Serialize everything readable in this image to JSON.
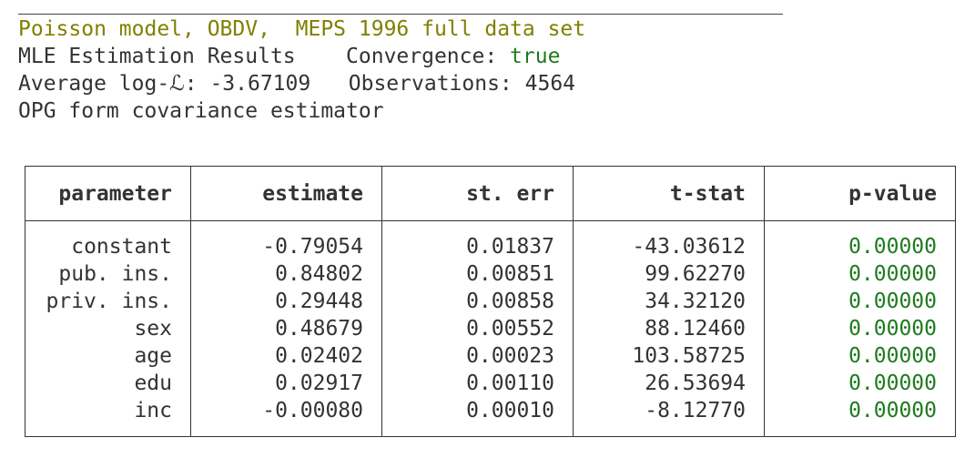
{
  "header": {
    "title": "Poisson model, OBDV,  MEPS 1996 full data set",
    "estimation_label": "MLE Estimation Results",
    "convergence_label": "Convergence: ",
    "convergence_value": "true",
    "avg_loglik_label": "Average log-ℒ: ",
    "avg_loglik_value": "-3.67109",
    "observations_label": "Observations: ",
    "observations_value": "4564",
    "covariance_text": "OPG form covariance estimator"
  },
  "table": {
    "columns": [
      "parameter",
      "estimate",
      "st. err",
      "t-stat",
      "p-value"
    ],
    "rows": [
      [
        "constant",
        "-0.79054",
        "0.01837",
        "-43.03612",
        "0.00000"
      ],
      [
        "pub. ins.",
        "0.84802",
        "0.00851",
        "99.62270",
        "0.00000"
      ],
      [
        "priv. ins.",
        "0.29448",
        "0.00858",
        "34.32120",
        "0.00000"
      ],
      [
        "sex",
        "0.48679",
        "0.00552",
        "88.12460",
        "0.00000"
      ],
      [
        "age",
        "0.02402",
        "0.00023",
        "103.58725",
        "0.00000"
      ],
      [
        "edu",
        "0.02917",
        "0.00110",
        "26.53694",
        "0.00000"
      ],
      [
        "inc",
        "-0.00080",
        "0.00010",
        "-8.12770",
        "0.00000"
      ]
    ]
  },
  "colors": {
    "title": "#808000",
    "convergence_true": "#1e7b1e",
    "p_value": "#1e7b1e",
    "text": "#333333"
  }
}
